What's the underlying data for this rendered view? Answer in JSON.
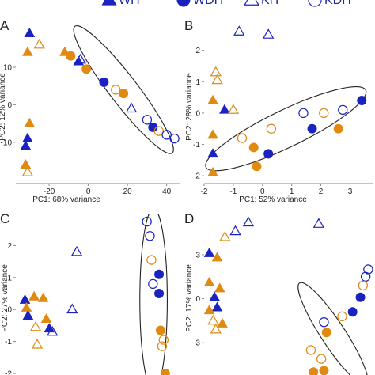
{
  "colors": {
    "wild_type_blue": "#1a22c0",
    "orange": "#e08a12",
    "ellipse": "#222222",
    "axis": "#666666"
  },
  "legend": {
    "items": [
      {
        "label": "WH",
        "marker": "triangle",
        "filled": true,
        "color": "#1a22c0"
      },
      {
        "label": "WDH",
        "marker": "circle",
        "filled": true,
        "color": "#1a22c0"
      },
      {
        "label": "KH",
        "marker": "triangle",
        "filled": false,
        "color": "#1a22c0"
      },
      {
        "label": "KDH",
        "marker": "circle",
        "filled": false,
        "color": "#1a22c0"
      }
    ]
  },
  "chart_data": [
    {
      "panel": "A",
      "type": "scatter",
      "xlabel": "PC1: 68% variance",
      "ylabel": "PC2: 12% variance",
      "xlim": [
        -37,
        47
      ],
      "ylim": [
        -21,
        22
      ],
      "xticks": [
        -20,
        0,
        20,
        40
      ],
      "yticks": [
        -10,
        0,
        10
      ],
      "show_x_ticks": true,
      "show_y_ticks": true,
      "ellipse": {
        "center": [
          18,
          4
        ],
        "semi_axes": [
          30,
          4.5
        ],
        "angle_data_slope": -0.68
      },
      "points": [
        {
          "x": -30,
          "y": 19,
          "marker": "triangle",
          "filled": true,
          "color": "#1a22c0"
        },
        {
          "x": -25,
          "y": 16,
          "marker": "triangle",
          "filled": false,
          "color": "#e08a12"
        },
        {
          "x": -12,
          "y": 14,
          "marker": "triangle",
          "filled": true,
          "color": "#e08a12"
        },
        {
          "x": -31,
          "y": 14,
          "marker": "triangle",
          "filled": true,
          "color": "#e08a12"
        },
        {
          "x": -4,
          "y": 12,
          "marker": "triangle",
          "filled": false,
          "color": "#1a22c0"
        },
        {
          "x": -9,
          "y": 13,
          "marker": "circle",
          "filled": true,
          "color": "#e08a12"
        },
        {
          "x": -5,
          "y": 11.5,
          "marker": "triangle",
          "filled": true,
          "color": "#1a22c0"
        },
        {
          "x": -1,
          "y": 9.5,
          "marker": "circle",
          "filled": true,
          "color": "#e08a12"
        },
        {
          "x": 8,
          "y": 6,
          "marker": "circle",
          "filled": true,
          "color": "#1a22c0"
        },
        {
          "x": 14,
          "y": 4,
          "marker": "circle",
          "filled": false,
          "color": "#e08a12"
        },
        {
          "x": 18,
          "y": 3,
          "marker": "circle",
          "filled": true,
          "color": "#e08a12"
        },
        {
          "x": 22,
          "y": -1,
          "marker": "triangle",
          "filled": false,
          "color": "#1a22c0"
        },
        {
          "x": 30,
          "y": -4,
          "marker": "circle",
          "filled": false,
          "color": "#1a22c0"
        },
        {
          "x": 33,
          "y": -6,
          "marker": "circle",
          "filled": true,
          "color": "#1a22c0"
        },
        {
          "x": 36,
          "y": -7,
          "marker": "circle",
          "filled": false,
          "color": "#e08a12"
        },
        {
          "x": 40,
          "y": -8,
          "marker": "circle",
          "filled": false,
          "color": "#1a22c0"
        },
        {
          "x": 44,
          "y": -9,
          "marker": "circle",
          "filled": false,
          "color": "#1a22c0"
        },
        {
          "x": -30,
          "y": -5,
          "marker": "triangle",
          "filled": true,
          "color": "#e08a12"
        },
        {
          "x": -31,
          "y": -9,
          "marker": "triangle",
          "filled": true,
          "color": "#1a22c0"
        },
        {
          "x": -32,
          "y": -11,
          "marker": "triangle",
          "filled": true,
          "color": "#1a22c0"
        },
        {
          "x": -32,
          "y": -16,
          "marker": "triangle",
          "filled": true,
          "color": "#e08a12"
        },
        {
          "x": -31,
          "y": -18,
          "marker": "triangle",
          "filled": false,
          "color": "#e08a12"
        }
      ]
    },
    {
      "panel": "B",
      "type": "scatter",
      "xlabel": "PC1: 52% variance",
      "ylabel": "PC2: 28% variance",
      "xlim": [
        -2,
        3.8
      ],
      "ylim": [
        -2.25,
        2.9
      ],
      "xticks": [
        -2,
        -1,
        0,
        1,
        2,
        3
      ],
      "yticks": [
        -2,
        -1,
        0,
        1,
        2
      ],
      "show_x_ticks": true,
      "show_y_ticks": true,
      "ellipse": {
        "center": [
          0.8,
          -0.5
        ],
        "semi_axes": [
          3.0,
          0.8
        ],
        "angle_data_slope": 0.45
      },
      "points": [
        {
          "x": -0.8,
          "y": 2.6,
          "marker": "triangle",
          "filled": false,
          "color": "#1a22c0"
        },
        {
          "x": 0.2,
          "y": 2.5,
          "marker": "triangle",
          "filled": false,
          "color": "#1a22c0"
        },
        {
          "x": -1.6,
          "y": 1.3,
          "marker": "triangle",
          "filled": false,
          "color": "#e08a12"
        },
        {
          "x": -1.55,
          "y": 1.05,
          "marker": "triangle",
          "filled": false,
          "color": "#e08a12"
        },
        {
          "x": -1.7,
          "y": 0.4,
          "marker": "triangle",
          "filled": true,
          "color": "#e08a12"
        },
        {
          "x": -1.3,
          "y": 0.1,
          "marker": "triangle",
          "filled": true,
          "color": "#1a22c0"
        },
        {
          "x": -1.0,
          "y": 0.1,
          "marker": "triangle",
          "filled": false,
          "color": "#e08a12"
        },
        {
          "x": -1.7,
          "y": -0.7,
          "marker": "triangle",
          "filled": true,
          "color": "#e08a12"
        },
        {
          "x": -1.7,
          "y": -1.3,
          "marker": "triangle",
          "filled": true,
          "color": "#1a22c0"
        },
        {
          "x": -1.7,
          "y": -1.9,
          "marker": "triangle",
          "filled": true,
          "color": "#e08a12"
        },
        {
          "x": -0.7,
          "y": -0.8,
          "marker": "circle",
          "filled": false,
          "color": "#e08a12"
        },
        {
          "x": 0.3,
          "y": -0.5,
          "marker": "circle",
          "filled": false,
          "color": "#e08a12"
        },
        {
          "x": -0.3,
          "y": -1.1,
          "marker": "circle",
          "filled": true,
          "color": "#e08a12"
        },
        {
          "x": 0.2,
          "y": -1.3,
          "marker": "circle",
          "filled": true,
          "color": "#1a22c0"
        },
        {
          "x": -0.2,
          "y": -1.7,
          "marker": "circle",
          "filled": true,
          "color": "#e08a12"
        },
        {
          "x": 1.4,
          "y": 0.0,
          "marker": "circle",
          "filled": false,
          "color": "#1a22c0"
        },
        {
          "x": 1.7,
          "y": -0.5,
          "marker": "circle",
          "filled": true,
          "color": "#1a22c0"
        },
        {
          "x": 2.1,
          "y": 0.0,
          "marker": "circle",
          "filled": false,
          "color": "#e08a12"
        },
        {
          "x": 2.6,
          "y": -0.5,
          "marker": "circle",
          "filled": true,
          "color": "#e08a12"
        },
        {
          "x": 2.75,
          "y": 0.1,
          "marker": "circle",
          "filled": false,
          "color": "#1a22c0"
        },
        {
          "x": 3.4,
          "y": 0.4,
          "marker": "circle",
          "filled": true,
          "color": "#1a22c0"
        }
      ]
    },
    {
      "panel": "C",
      "type": "scatter",
      "xlabel": "",
      "ylabel": "PC2: 27% variance",
      "xlim": [
        -2.0,
        3.4
      ],
      "ylim": [
        -2.05,
        3.0
      ],
      "xticks": [],
      "yticks": [
        -2,
        -1,
        0,
        1,
        2
      ],
      "show_x_ticks": false,
      "show_y_ticks": true,
      "ellipse": {
        "center": [
          2.52,
          0.3
        ],
        "semi_axes": [
          0.45,
          2.85
        ],
        "angle_data_slope": 0.0
      },
      "points": [
        {
          "x": -1.7,
          "y": 0.3,
          "marker": "triangle",
          "filled": true,
          "color": "#1a22c0"
        },
        {
          "x": -1.65,
          "y": 0.05,
          "marker": "triangle",
          "filled": true,
          "color": "#e08a12"
        },
        {
          "x": -1.4,
          "y": 0.4,
          "marker": "triangle",
          "filled": true,
          "color": "#e08a12"
        },
        {
          "x": -1.6,
          "y": -0.2,
          "marker": "triangle",
          "filled": true,
          "color": "#1a22c0"
        },
        {
          "x": -1.35,
          "y": -0.55,
          "marker": "triangle",
          "filled": false,
          "color": "#e08a12"
        },
        {
          "x": -1.3,
          "y": -1.1,
          "marker": "triangle",
          "filled": false,
          "color": "#e08a12"
        },
        {
          "x": -1.1,
          "y": 0.35,
          "marker": "triangle",
          "filled": true,
          "color": "#e08a12"
        },
        {
          "x": -1.0,
          "y": -0.3,
          "marker": "triangle",
          "filled": true,
          "color": "#e08a12"
        },
        {
          "x": -0.9,
          "y": -0.6,
          "marker": "triangle",
          "filled": true,
          "color": "#1a22c0"
        },
        {
          "x": -0.8,
          "y": -0.7,
          "marker": "triangle",
          "filled": false,
          "color": "#1a22c0"
        },
        {
          "x": -0.15,
          "y": 0.0,
          "marker": "triangle",
          "filled": false,
          "color": "#1a22c0"
        },
        {
          "x": 0.0,
          "y": 1.8,
          "marker": "triangle",
          "filled": false,
          "color": "#1a22c0"
        },
        {
          "x": 2.3,
          "y": 2.75,
          "marker": "circle",
          "filled": false,
          "color": "#1a22c0"
        },
        {
          "x": 2.4,
          "y": 2.3,
          "marker": "circle",
          "filled": false,
          "color": "#1a22c0"
        },
        {
          "x": 2.45,
          "y": 1.55,
          "marker": "circle",
          "filled": false,
          "color": "#e08a12"
        },
        {
          "x": 2.7,
          "y": 1.1,
          "marker": "circle",
          "filled": true,
          "color": "#1a22c0"
        },
        {
          "x": 2.5,
          "y": 0.8,
          "marker": "circle",
          "filled": false,
          "color": "#1a22c0"
        },
        {
          "x": 2.7,
          "y": 0.5,
          "marker": "circle",
          "filled": true,
          "color": "#1a22c0"
        },
        {
          "x": 2.75,
          "y": -0.65,
          "marker": "circle",
          "filled": true,
          "color": "#e08a12"
        },
        {
          "x": 2.85,
          "y": -0.95,
          "marker": "circle",
          "filled": false,
          "color": "#e08a12"
        },
        {
          "x": 2.8,
          "y": -1.15,
          "marker": "circle",
          "filled": false,
          "color": "#e08a12"
        },
        {
          "x": 2.9,
          "y": -2.0,
          "marker": "circle",
          "filled": true,
          "color": "#e08a12"
        }
      ]
    },
    {
      "panel": "D",
      "type": "scatter",
      "xlabel": "",
      "ylabel": "PC2: 17% variance",
      "xlim": [
        -2,
        4.5
      ],
      "ylim": [
        -5.2,
        5.8
      ],
      "xticks": [],
      "yticks": [
        -3,
        0,
        3
      ],
      "show_x_ticks": false,
      "show_y_ticks": true,
      "ellipse": {
        "center": [
          2.95,
          -2.4
        ],
        "semi_axes": [
          3.7,
          0.9
        ],
        "angle_data_slope": -2.7
      },
      "points": [
        {
          "x": -0.3,
          "y": 5.2,
          "marker": "triangle",
          "filled": false,
          "color": "#1a22c0"
        },
        {
          "x": 2.4,
          "y": 5.1,
          "marker": "triangle",
          "filled": false,
          "color": "#1a22c0"
        },
        {
          "x": -0.8,
          "y": 4.6,
          "marker": "triangle",
          "filled": false,
          "color": "#1a22c0"
        },
        {
          "x": -1.2,
          "y": 4.2,
          "marker": "triangle",
          "filled": false,
          "color": "#e08a12"
        },
        {
          "x": -1.8,
          "y": 3.1,
          "marker": "triangle",
          "filled": true,
          "color": "#1a22c0"
        },
        {
          "x": -1.5,
          "y": 2.8,
          "marker": "triangle",
          "filled": true,
          "color": "#e08a12"
        },
        {
          "x": -1.8,
          "y": 1.1,
          "marker": "triangle",
          "filled": true,
          "color": "#e08a12"
        },
        {
          "x": -1.4,
          "y": 0.7,
          "marker": "triangle",
          "filled": true,
          "color": "#e08a12"
        },
        {
          "x": -1.6,
          "y": 0.1,
          "marker": "triangle",
          "filled": true,
          "color": "#1a22c0"
        },
        {
          "x": -1.5,
          "y": -0.6,
          "marker": "triangle",
          "filled": true,
          "color": "#1a22c0"
        },
        {
          "x": -1.8,
          "y": -0.8,
          "marker": "triangle",
          "filled": true,
          "color": "#e08a12"
        },
        {
          "x": -1.65,
          "y": -1.5,
          "marker": "triangle",
          "filled": false,
          "color": "#e08a12"
        },
        {
          "x": -1.55,
          "y": -2.1,
          "marker": "triangle",
          "filled": false,
          "color": "#e08a12"
        },
        {
          "x": -1.3,
          "y": -1.7,
          "marker": "triangle",
          "filled": true,
          "color": "#e08a12"
        },
        {
          "x": 4.3,
          "y": 2.0,
          "marker": "circle",
          "filled": false,
          "color": "#1a22c0"
        },
        {
          "x": 4.2,
          "y": 1.5,
          "marker": "circle",
          "filled": false,
          "color": "#1a22c0"
        },
        {
          "x": 4.1,
          "y": 0.9,
          "marker": "circle",
          "filled": false,
          "color": "#e08a12"
        },
        {
          "x": 4.0,
          "y": 0.1,
          "marker": "circle",
          "filled": true,
          "color": "#1a22c0"
        },
        {
          "x": 3.3,
          "y": -1.2,
          "marker": "circle",
          "filled": false,
          "color": "#e08a12"
        },
        {
          "x": 3.7,
          "y": -0.9,
          "marker": "circle",
          "filled": true,
          "color": "#1a22c0"
        },
        {
          "x": 2.6,
          "y": -1.6,
          "marker": "circle",
          "filled": false,
          "color": "#1a22c0"
        },
        {
          "x": 2.7,
          "y": -2.3,
          "marker": "circle",
          "filled": true,
          "color": "#e08a12"
        },
        {
          "x": 2.1,
          "y": -3.5,
          "marker": "circle",
          "filled": false,
          "color": "#e08a12"
        },
        {
          "x": 2.5,
          "y": -4.1,
          "marker": "circle",
          "filled": false,
          "color": "#e08a12"
        },
        {
          "x": 2.2,
          "y": -5.0,
          "marker": "circle",
          "filled": true,
          "color": "#e08a12"
        },
        {
          "x": 2.6,
          "y": -4.9,
          "marker": "circle",
          "filled": true,
          "color": "#e08a12"
        }
      ]
    }
  ]
}
